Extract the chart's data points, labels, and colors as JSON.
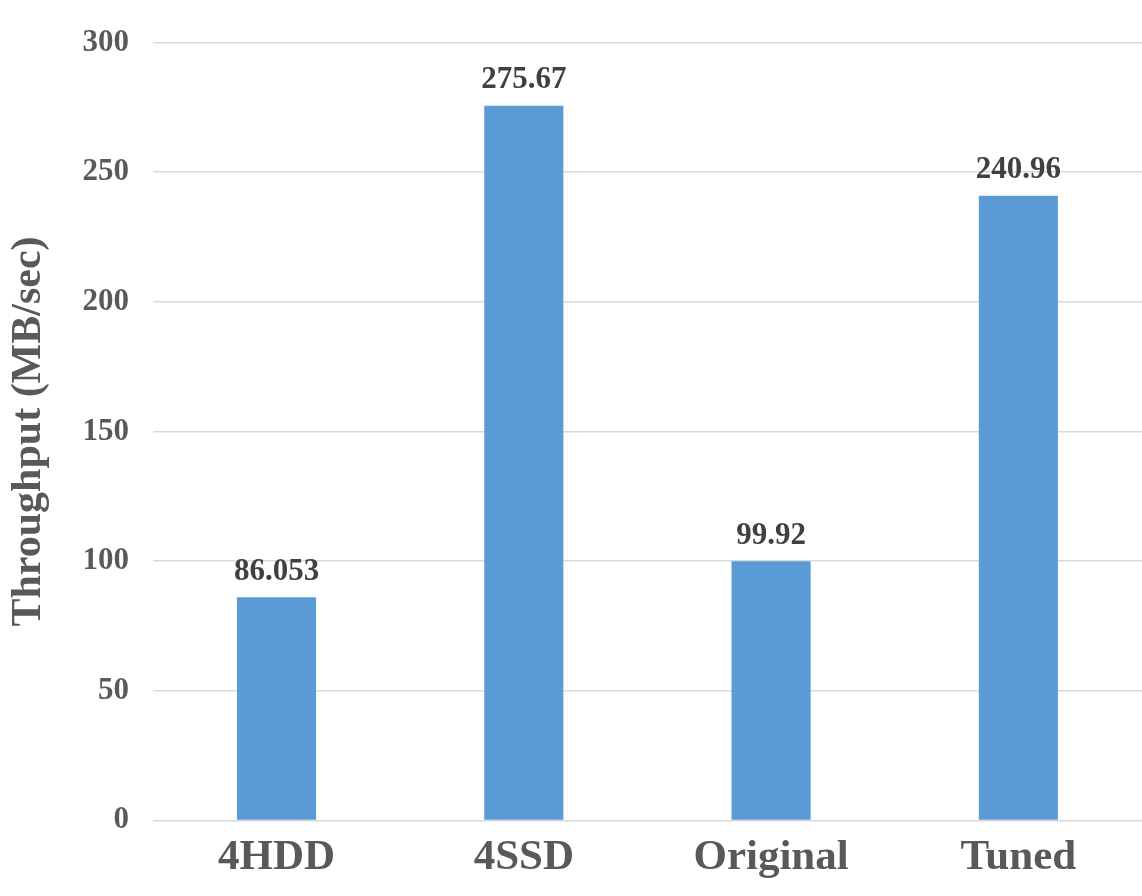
{
  "chart_data": {
    "type": "bar",
    "ylabel": "Throughput (MB/sec)",
    "categories": [
      "4HDD",
      "4SSD",
      "Original",
      "Tuned"
    ],
    "values": [
      86.053,
      275.67,
      99.92,
      240.96
    ],
    "color": "#5b9bd5",
    "ylim": [
      0,
      300
    ],
    "yticks": [
      0,
      50,
      100,
      150,
      200,
      250,
      300
    ],
    "grid": "y",
    "data_labels": true
  }
}
